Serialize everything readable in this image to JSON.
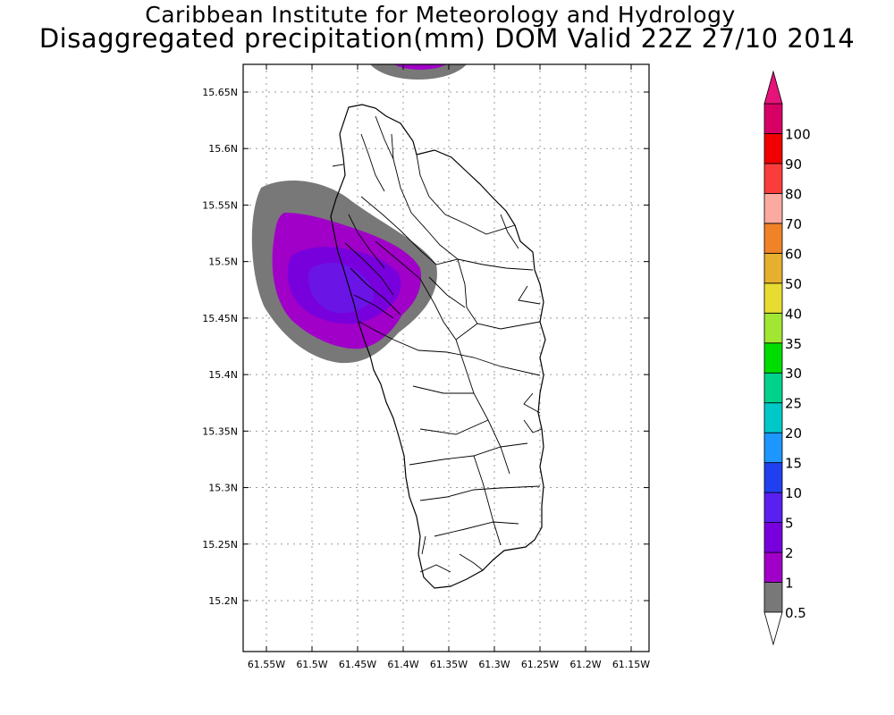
{
  "title": {
    "line1": "Caribbean Institute for Meteorology and Hydrology",
    "line2": "Disaggregated precipitation(mm) DOM Valid 22Z 27/10 2014"
  },
  "map": {
    "lat_ticks": [
      "15.65N",
      "15.6N",
      "15.55N",
      "15.5N",
      "15.45N",
      "15.4N",
      "15.35N",
      "15.3N",
      "15.25N",
      "15.2N"
    ],
    "lon_ticks": [
      "61.55W",
      "61.5W",
      "61.45W",
      "61.4W",
      "61.35W",
      "61.3W",
      "61.25W",
      "61.2W",
      "61.15W"
    ],
    "lat_values": [
      15.65,
      15.6,
      15.55,
      15.5,
      15.45,
      15.4,
      15.35,
      15.3,
      15.25,
      15.2
    ],
    "lon_values": [
      -61.55,
      -61.5,
      -61.45,
      -61.4,
      -61.35,
      -61.3,
      -61.25,
      -61.2,
      -61.15
    ],
    "grid": true,
    "region": "Dominica"
  },
  "colorbar": {
    "labels": [
      "0.5",
      "1",
      "2",
      "5",
      "10",
      "15",
      "20",
      "25",
      "30",
      "35",
      "40",
      "50",
      "60",
      "70",
      "80",
      "90",
      "100"
    ],
    "colors": [
      "#787878",
      "#a000c8",
      "#7800dc",
      "#5a20f0",
      "#2040f0",
      "#1e96ff",
      "#00c8c8",
      "#00d28c",
      "#00dc00",
      "#a0e632",
      "#e6dc32",
      "#e6af2d",
      "#f08228",
      "#faaaa0",
      "#fa3c3c",
      "#f00000",
      "#d70064"
    ],
    "top_triangle_color": "#e6147a",
    "bottom_triangle_color": "#ffffff"
  }
}
